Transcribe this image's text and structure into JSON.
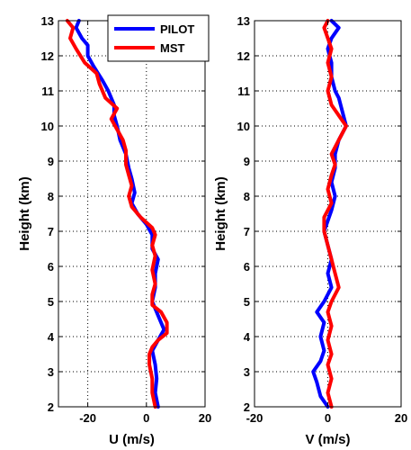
{
  "chart_data": [
    {
      "type": "line",
      "xlabel": "U (m/s)",
      "ylabel": "Height (km)",
      "xlim": [
        -30,
        20
      ],
      "ylim": [
        2,
        13
      ],
      "xticks": [
        -20,
        0,
        20
      ],
      "yticks": [
        2,
        3,
        4,
        5,
        6,
        7,
        8,
        9,
        10,
        11,
        12,
        13
      ],
      "grid": true,
      "legend": "top-right",
      "series": [
        {
          "name": "PILOT",
          "color": "#0000ff",
          "points": [
            [
              4,
              2.0
            ],
            [
              3,
              2.4
            ],
            [
              3.5,
              2.8
            ],
            [
              3,
              3.2
            ],
            [
              2,
              3.6
            ],
            [
              4,
              3.9
            ],
            [
              6,
              4.2
            ],
            [
              4,
              4.6
            ],
            [
              2,
              5.0
            ],
            [
              3,
              5.4
            ],
            [
              3,
              5.8
            ],
            [
              4,
              6.2
            ],
            [
              2,
              6.5
            ],
            [
              2,
              6.9
            ],
            [
              0,
              7.2
            ],
            [
              -3,
              7.5
            ],
            [
              -5,
              7.8
            ],
            [
              -4,
              8.1
            ],
            [
              -5,
              8.5
            ],
            [
              -6,
              8.8
            ],
            [
              -7,
              9.2
            ],
            [
              -9,
              9.6
            ],
            [
              -10,
              10.0
            ],
            [
              -11,
              10.3
            ],
            [
              -11,
              10.6
            ],
            [
              -13,
              11.0
            ],
            [
              -15,
              11.3
            ],
            [
              -18,
              11.7
            ],
            [
              -20,
              12.0
            ],
            [
              -20,
              12.3
            ],
            [
              -22,
              12.5
            ],
            [
              -24,
              12.8
            ],
            [
              -23,
              13.0
            ]
          ]
        },
        {
          "name": "MST",
          "color": "#ff0000",
          "points": [
            [
              3,
              2.0
            ],
            [
              2,
              2.4
            ],
            [
              2,
              2.8
            ],
            [
              1,
              3.2
            ],
            [
              1,
              3.5
            ],
            [
              2,
              3.7
            ],
            [
              4,
              3.9
            ],
            [
              7,
              4.1
            ],
            [
              7,
              4.4
            ],
            [
              5,
              4.7
            ],
            [
              2,
              4.9
            ],
            [
              2,
              5.2
            ],
            [
              3,
              5.5
            ],
            [
              2,
              5.9
            ],
            [
              3,
              6.3
            ],
            [
              2,
              6.6
            ],
            [
              3,
              6.9
            ],
            [
              2,
              7.1
            ],
            [
              -2,
              7.4
            ],
            [
              -5,
              7.7
            ],
            [
              -6,
              8.0
            ],
            [
              -5,
              8.3
            ],
            [
              -6,
              8.6
            ],
            [
              -7,
              8.9
            ],
            [
              -7,
              9.3
            ],
            [
              -8,
              9.6
            ],
            [
              -10,
              9.9
            ],
            [
              -12,
              10.2
            ],
            [
              -10,
              10.5
            ],
            [
              -14,
              10.8
            ],
            [
              -16,
              11.2
            ],
            [
              -17,
              11.5
            ],
            [
              -21,
              11.8
            ],
            [
              -24,
              12.2
            ],
            [
              -26,
              12.5
            ],
            [
              -25,
              12.8
            ],
            [
              -27,
              13.0
            ]
          ]
        }
      ]
    },
    {
      "type": "line",
      "xlabel": "V (m/s)",
      "ylabel": "Height (km)",
      "xlim": [
        -20,
        20
      ],
      "ylim": [
        2,
        13
      ],
      "xticks": [
        -20,
        0,
        20
      ],
      "yticks": [
        2,
        3,
        4,
        5,
        6,
        7,
        8,
        9,
        10,
        11,
        12,
        13
      ],
      "grid": true,
      "series": [
        {
          "name": "PILOT",
          "color": "#0000ff",
          "points": [
            [
              0,
              2.0
            ],
            [
              -2,
              2.3
            ],
            [
              -3,
              2.7
            ],
            [
              -4,
              3.0
            ],
            [
              -2,
              3.3
            ],
            [
              -1,
              3.6
            ],
            [
              -2,
              4.0
            ],
            [
              -1,
              4.4
            ],
            [
              -3,
              4.7
            ],
            [
              -1,
              5.0
            ],
            [
              1,
              5.4
            ],
            [
              0,
              5.8
            ],
            [
              1,
              6.2
            ],
            [
              0,
              6.6
            ],
            [
              -1,
              7.0
            ],
            [
              0,
              7.3
            ],
            [
              1,
              7.6
            ],
            [
              2,
              8.0
            ],
            [
              1,
              8.4
            ],
            [
              2,
              8.8
            ],
            [
              2,
              9.2
            ],
            [
              3,
              9.6
            ],
            [
              5,
              10.0
            ],
            [
              4,
              10.4
            ],
            [
              3,
              10.8
            ],
            [
              2,
              11.0
            ],
            [
              1,
              11.4
            ],
            [
              1,
              11.8
            ],
            [
              0,
              12.2
            ],
            [
              1,
              12.5
            ],
            [
              3,
              12.8
            ],
            [
              1,
              13.0
            ]
          ]
        },
        {
          "name": "MST",
          "color": "#ff0000",
          "points": [
            [
              1,
              2.0
            ],
            [
              0,
              2.4
            ],
            [
              1,
              2.8
            ],
            [
              0,
              3.2
            ],
            [
              1,
              3.5
            ],
            [
              0,
              3.9
            ],
            [
              1,
              4.3
            ],
            [
              0,
              4.7
            ],
            [
              1,
              5.0
            ],
            [
              3,
              5.4
            ],
            [
              2,
              5.8
            ],
            [
              1,
              6.2
            ],
            [
              0,
              6.6
            ],
            [
              -1,
              7.0
            ],
            [
              -1,
              7.4
            ],
            [
              1,
              7.8
            ],
            [
              0,
              8.2
            ],
            [
              1,
              8.6
            ],
            [
              2,
              8.9
            ],
            [
              1,
              9.2
            ],
            [
              3,
              9.6
            ],
            [
              5,
              10.0
            ],
            [
              3,
              10.3
            ],
            [
              1,
              10.6
            ],
            [
              0,
              11.0
            ],
            [
              1,
              11.4
            ],
            [
              0,
              11.8
            ],
            [
              1,
              12.2
            ],
            [
              0,
              12.5
            ],
            [
              -1,
              12.8
            ],
            [
              0,
              13.0
            ]
          ]
        }
      ]
    }
  ]
}
